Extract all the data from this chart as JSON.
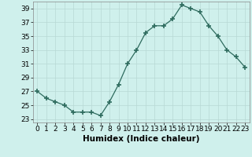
{
  "x": [
    0,
    1,
    2,
    3,
    4,
    5,
    6,
    7,
    8,
    9,
    10,
    11,
    12,
    13,
    14,
    15,
    16,
    17,
    18,
    19,
    20,
    21,
    22,
    23
  ],
  "y": [
    27,
    26,
    25.5,
    25,
    24,
    24,
    24,
    23.5,
    25.5,
    28,
    31,
    33,
    35.5,
    36.5,
    36.5,
    37.5,
    39.5,
    39,
    38.5,
    36.5,
    35,
    33,
    32,
    30.5
  ],
  "line_color": "#2e6b5e",
  "marker": "+",
  "marker_size": 4,
  "marker_linewidth": 1.2,
  "bg_color": "#cff0ec",
  "grid_color": "#b8d8d4",
  "xlabel": "Humidex (Indice chaleur)",
  "ylim": [
    22.5,
    40
  ],
  "xlim": [
    -0.5,
    23.5
  ],
  "yticks": [
    23,
    25,
    27,
    29,
    31,
    33,
    35,
    37,
    39
  ],
  "xticks": [
    0,
    1,
    2,
    3,
    4,
    5,
    6,
    7,
    8,
    9,
    10,
    11,
    12,
    13,
    14,
    15,
    16,
    17,
    18,
    19,
    20,
    21,
    22,
    23
  ],
  "tick_fontsize": 6.5,
  "xlabel_fontsize": 7.5,
  "line_width": 0.9
}
